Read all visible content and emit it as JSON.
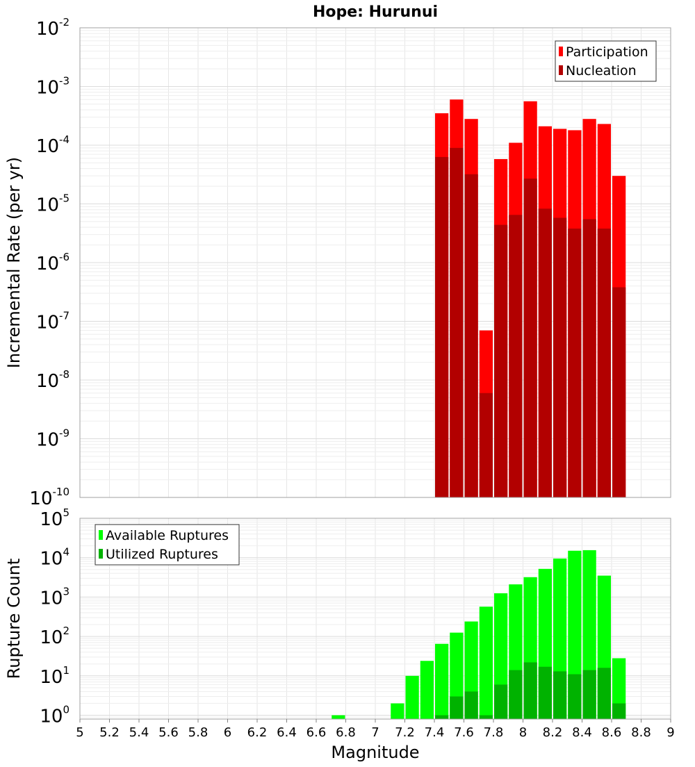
{
  "chart_data": [
    {
      "id": "rate",
      "type": "bar",
      "title": "Hope: Hurunui",
      "ylabel": "Incremental Rate (per yr)",
      "xlabel": "",
      "yscale": "log",
      "ylim": [
        1e-10,
        0.01
      ],
      "xlim": [
        5,
        9
      ],
      "grid": true,
      "legend_position": "top-right",
      "x": [
        7.45,
        7.55,
        7.65,
        7.75,
        7.85,
        7.95,
        8.05,
        8.15,
        8.25,
        8.35,
        8.45,
        8.55,
        8.65
      ],
      "series": [
        {
          "name": "Participation",
          "color": "#ff0000",
          "values": [
            0.00035,
            0.0006,
            0.00028,
            7e-08,
            5.8e-05,
            0.00011,
            0.00056,
            0.00021,
            0.00019,
            0.00018,
            0.00028,
            0.00023,
            3e-05
          ]
        },
        {
          "name": "Nucleation",
          "color": "#b20000",
          "values": [
            6.3e-05,
            9e-05,
            3.2e-05,
            6e-09,
            4.4e-06,
            6.5e-06,
            2.7e-05,
            8.3e-06,
            5.8e-06,
            3.8e-06,
            5.5e-06,
            3.8e-06,
            3.8e-07
          ]
        }
      ]
    },
    {
      "id": "count",
      "type": "bar",
      "title": "",
      "ylabel": "Rupture Count",
      "xlabel": "Magnitude",
      "yscale": "log",
      "ylim": [
        0.8,
        100000
      ],
      "xlim": [
        5,
        9
      ],
      "grid": true,
      "legend_position": "top-left",
      "x_ticks": [
        "5",
        "5.2",
        "5.4",
        "5.6",
        "5.8",
        "6",
        "6.2",
        "6.4",
        "6.6",
        "6.8",
        "7",
        "7.2",
        "7.4",
        "7.6",
        "7.8",
        "8",
        "8.2",
        "8.4",
        "8.6",
        "8.8",
        "9"
      ],
      "x": [
        6.75,
        7.15,
        7.25,
        7.35,
        7.45,
        7.55,
        7.65,
        7.75,
        7.85,
        7.95,
        8.05,
        8.15,
        8.25,
        8.35,
        8.45,
        8.55,
        8.65
      ],
      "series": [
        {
          "name": "Available Ruptures",
          "color": "#00ff00",
          "values": [
            1,
            2,
            10,
            24,
            65,
            125,
            240,
            570,
            1250,
            2100,
            3200,
            5200,
            9500,
            15000,
            15500,
            3500,
            28
          ]
        },
        {
          "name": "Utilized Ruptures",
          "color": "#00b200",
          "values": [
            null,
            null,
            null,
            null,
            1,
            3,
            4,
            1,
            6,
            14,
            22,
            17,
            13,
            11,
            14,
            16,
            2
          ]
        }
      ]
    }
  ]
}
